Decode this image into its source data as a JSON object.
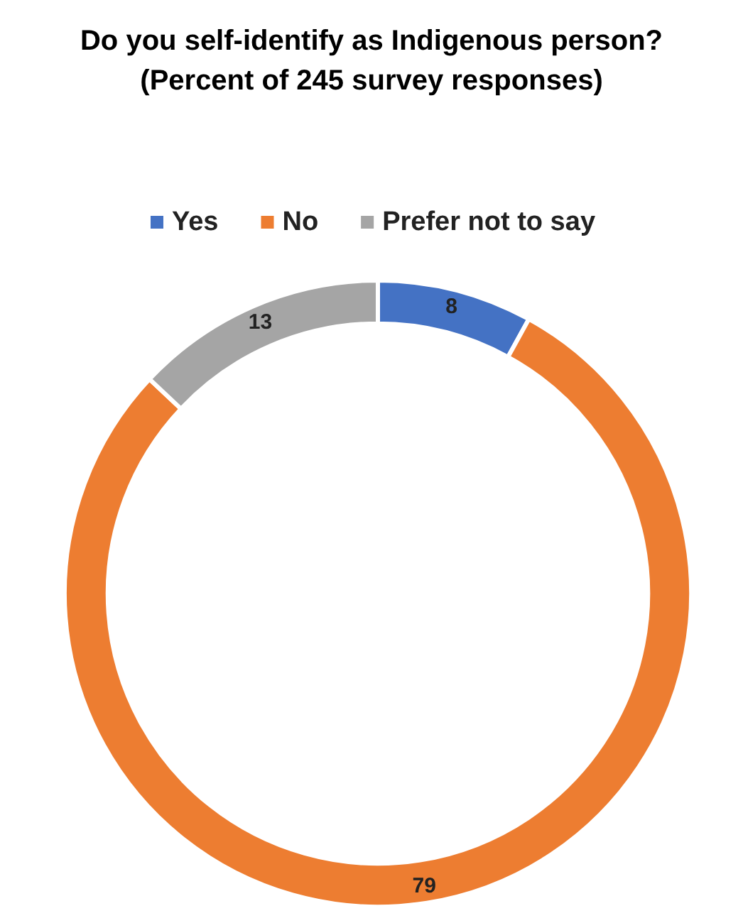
{
  "chart_data": {
    "type": "donut",
    "title": "Do you self-identify as Indigenous person?",
    "subtitle": "(Percent of 245 survey responses)",
    "categories": [
      "Yes",
      "No",
      "Prefer not to say"
    ],
    "values": [
      8,
      79,
      13
    ],
    "colors": [
      "#4472c4",
      "#ed7d31",
      "#a5a5a5"
    ],
    "data_labels": true,
    "legend": "top"
  }
}
